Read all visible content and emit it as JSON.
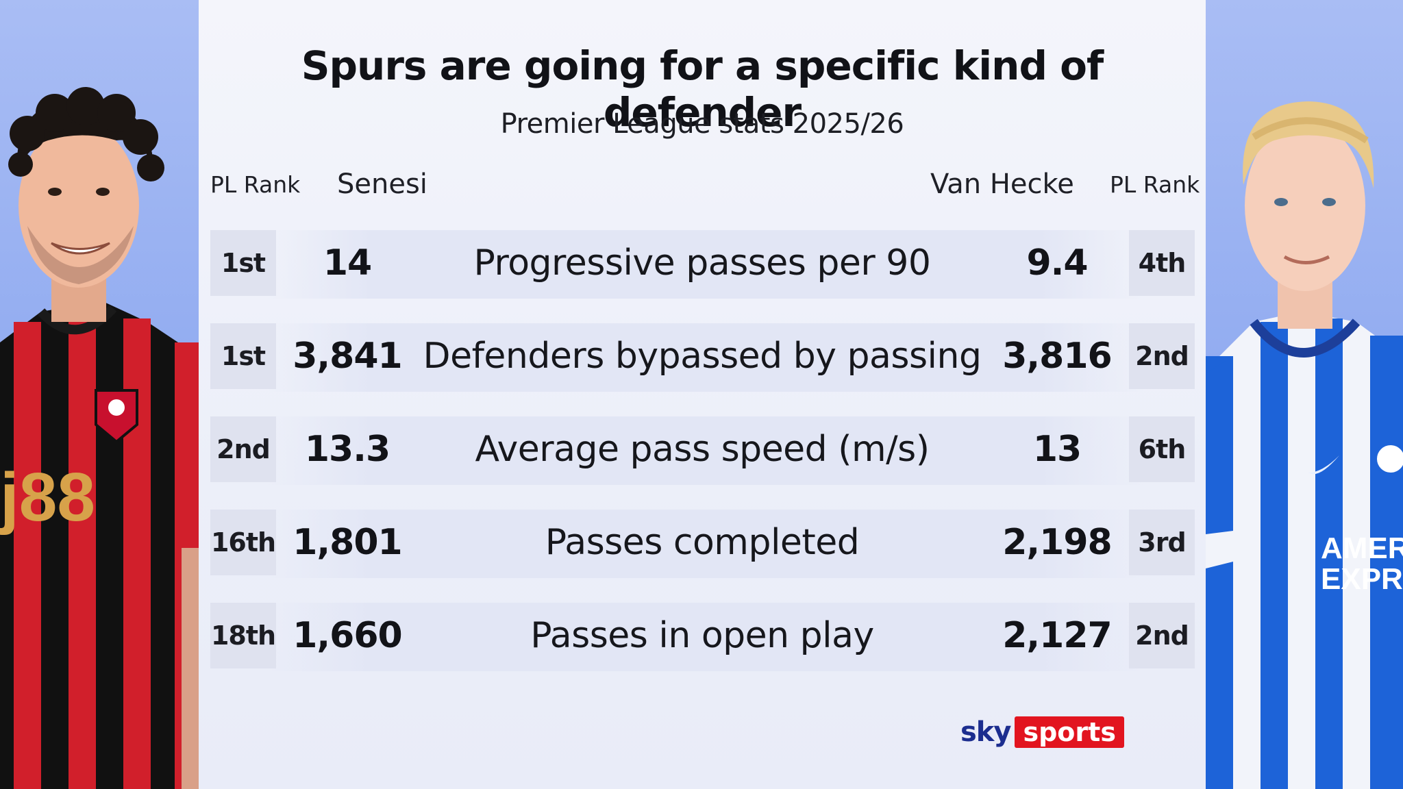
{
  "title": "Spurs are going for a specific kind of defender",
  "subtitle": "Premier League stats 2025/26",
  "headers": {
    "left_rank": "PL Rank",
    "left_player": "Senesi",
    "right_player": "Van Hecke",
    "right_rank": "PL Rank"
  },
  "rows": [
    {
      "left_rank": "1st",
      "left_value": "14",
      "metric": "Progressive passes per 90",
      "right_value": "9.4",
      "right_rank": "4th"
    },
    {
      "left_rank": "1st",
      "left_value": "3,841",
      "metric": "Defenders bypassed by passing",
      "right_value": "3,816",
      "right_rank": "2nd"
    },
    {
      "left_rank": "2nd",
      "left_value": "13.3",
      "metric": "Average pass speed (m/s)",
      "right_value": "13",
      "right_rank": "6th"
    },
    {
      "left_rank": "16th",
      "left_value": "1,801",
      "metric": "Passes completed",
      "right_value": "2,198",
      "right_rank": "3rd"
    },
    {
      "left_rank": "18th",
      "left_value": "1,660",
      "metric": "Passes in open play",
      "right_value": "2,127",
      "right_rank": "2nd"
    }
  ],
  "logo": {
    "sky": "sky",
    "sports": "sports"
  },
  "colors": {
    "background": "#8ea9f0",
    "card": "#eceff9",
    "rank_box": "#dfe2ef",
    "bournemouth_red": "#d11f2b",
    "brighton_blue": "#1d63d8",
    "sky_sports_red": "#e2141f"
  },
  "icons": {
    "left_photo": "player-photo-senesi",
    "right_photo": "player-photo-van-hecke"
  }
}
